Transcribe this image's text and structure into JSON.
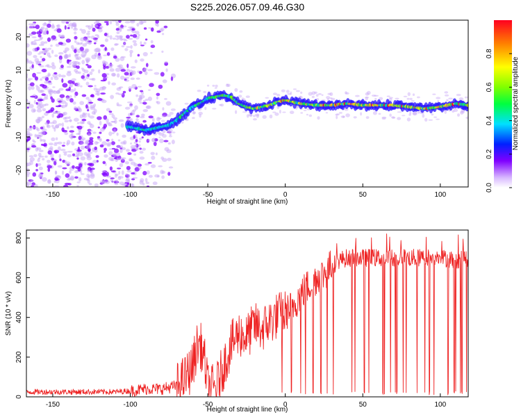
{
  "title": "S225.2026.057.09.46.G30",
  "colors": {
    "background": "#ffffff",
    "spectrogram_low": "#7f00ff",
    "trace": "#ee2222"
  },
  "chart_data": [
    {
      "type": "heatmap",
      "title": "S225.2026.057.09.46.G30",
      "xlabel": "Height of straight line (km)",
      "ylabel": "Frequency (Hz)",
      "xlim": [
        -167,
        118
      ],
      "ylim": [
        -25,
        25
      ],
      "xticks": [
        -150,
        -100,
        -50,
        0,
        50,
        100
      ],
      "yticks": [
        -20,
        -10,
        0,
        10,
        20
      ],
      "colorbar": {
        "label": "Normalized spectral amplitude",
        "range": [
          0.0,
          1.0
        ],
        "ticks": [
          0.0,
          0.2,
          0.4,
          0.6,
          0.8
        ],
        "tick_labels": [
          "0.0",
          "0.2",
          "0.4",
          "0.6",
          "0.8"
        ],
        "colormap": "rainbow (violet to red)"
      },
      "signal_ridge": {
        "description": "Dominant Doppler frequency line vs height",
        "x": [
          -100,
          -95,
          -90,
          -85,
          -80,
          -75,
          -70,
          -65,
          -60,
          -55,
          -50,
          -45,
          -40,
          -35,
          -30,
          -25,
          -20,
          -15,
          -10,
          -5,
          0,
          5,
          10,
          20,
          30,
          40,
          50,
          60,
          70,
          80,
          90,
          100,
          110,
          118
        ],
        "y": [
          -7.0,
          -7.5,
          -8.0,
          -7.5,
          -7.0,
          -6.5,
          -5.0,
          -3.0,
          -1.0,
          0.0,
          1.5,
          2.0,
          2.5,
          2.0,
          0.0,
          -1.0,
          -1.5,
          -1.0,
          -0.5,
          0.5,
          1.0,
          0.5,
          0.0,
          -0.5,
          -0.5,
          0.0,
          -0.5,
          -0.5,
          -0.5,
          -1.0,
          -1.5,
          -1.0,
          0.0,
          -0.5
        ]
      },
      "noise_region": {
        "description": "Scattered low-amplitude violet noise",
        "x_range": [
          -167,
          -85
        ],
        "freq_range": [
          -25,
          25
        ]
      }
    },
    {
      "type": "line",
      "title": "",
      "xlabel": "Height of straight line (km)",
      "ylabel": "SNR (10 * v/v)",
      "xlim": [
        -167,
        118
      ],
      "ylim": [
        0,
        840
      ],
      "xticks": [
        -150,
        -100,
        -50,
        0,
        50,
        100
      ],
      "yticks": [
        0,
        200,
        400,
        600,
        800
      ],
      "series": [
        {
          "name": "SNR",
          "color": "#ee2222",
          "x": [
            -167,
            -150,
            -130,
            -110,
            -100,
            -90,
            -80,
            -70,
            -65,
            -60,
            -57,
            -55,
            -52,
            -50,
            -45,
            -40,
            -35,
            -30,
            -25,
            -20,
            -15,
            -10,
            -5,
            0,
            5,
            10,
            15,
            20,
            25,
            30,
            35,
            40,
            50,
            60,
            70,
            80,
            90,
            100,
            110,
            118
          ],
          "y": [
            25,
            25,
            25,
            25,
            30,
            40,
            40,
            55,
            90,
            150,
            250,
            270,
            180,
            55,
            40,
            150,
            260,
            320,
            300,
            360,
            340,
            380,
            410,
            420,
            460,
            520,
            560,
            600,
            620,
            660,
            690,
            700,
            700,
            700,
            700,
            700,
            700,
            700,
            690,
            700
          ]
        }
      ],
      "dropouts_x": [
        -2,
        4,
        10,
        13,
        18,
        23,
        27,
        31,
        43,
        45,
        51,
        54,
        63,
        64,
        68,
        71,
        72,
        76,
        78,
        85,
        90,
        93,
        96,
        105,
        109,
        110,
        113,
        114,
        117
      ]
    }
  ]
}
